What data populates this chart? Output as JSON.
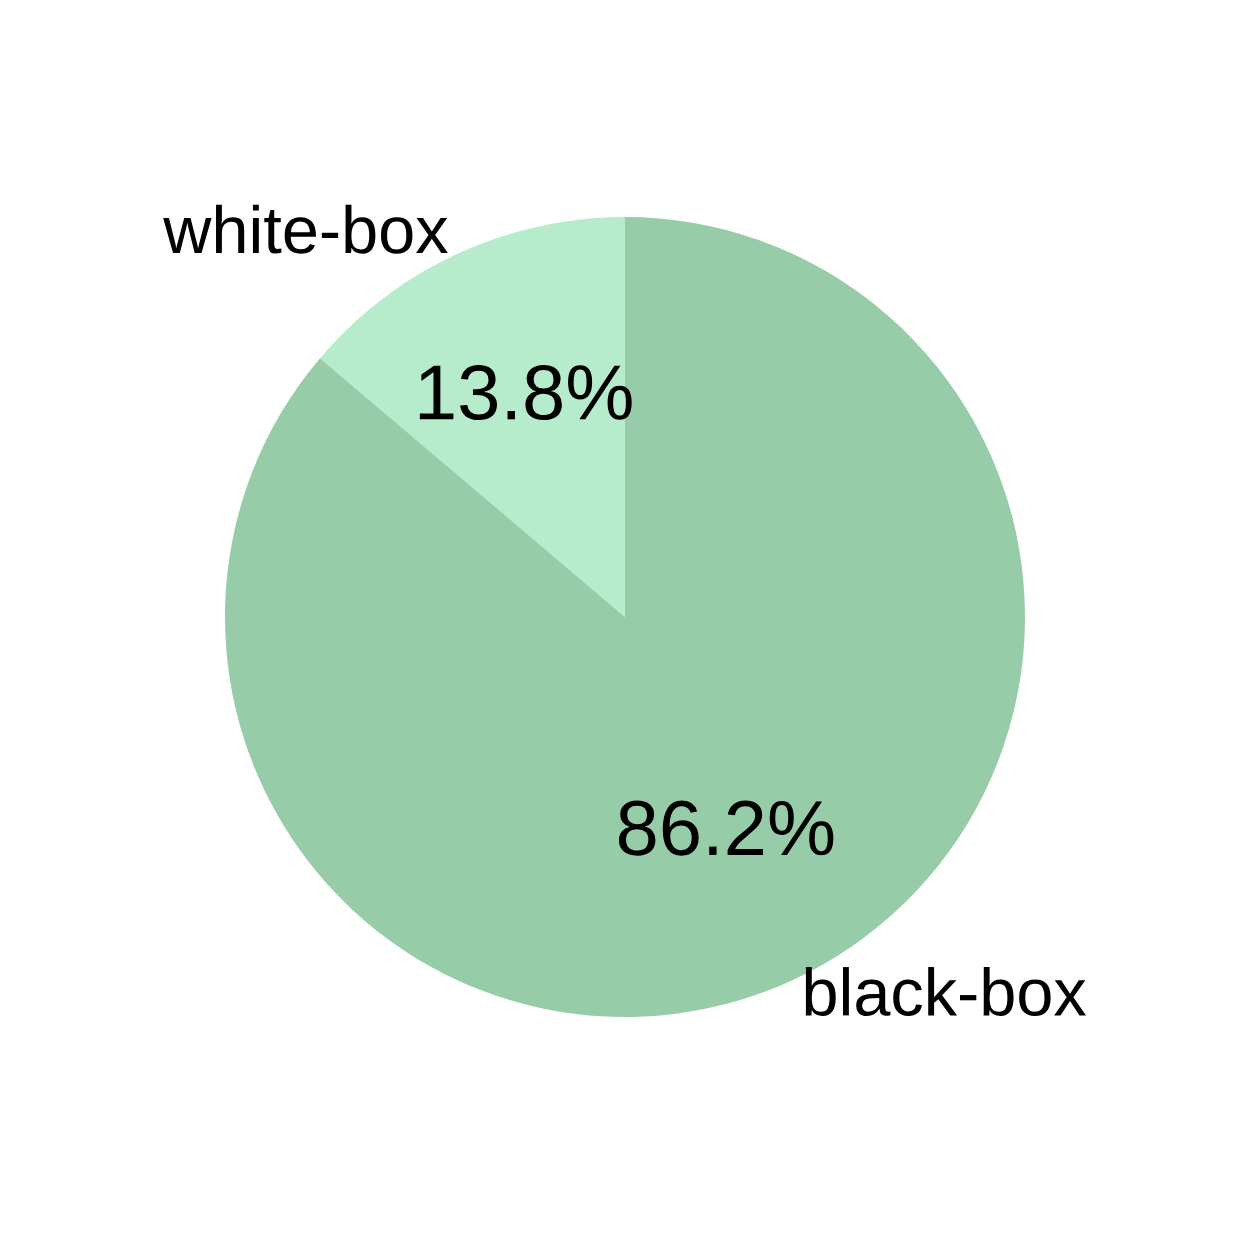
{
  "chart_data": {
    "type": "pie",
    "categories": [
      "white-box",
      "black-box"
    ],
    "values": [
      13.8,
      86.2
    ],
    "colors": [
      "#b6eccb",
      "#97cca8"
    ],
    "value_labels": [
      "13.8%",
      "86.2%"
    ]
  }
}
